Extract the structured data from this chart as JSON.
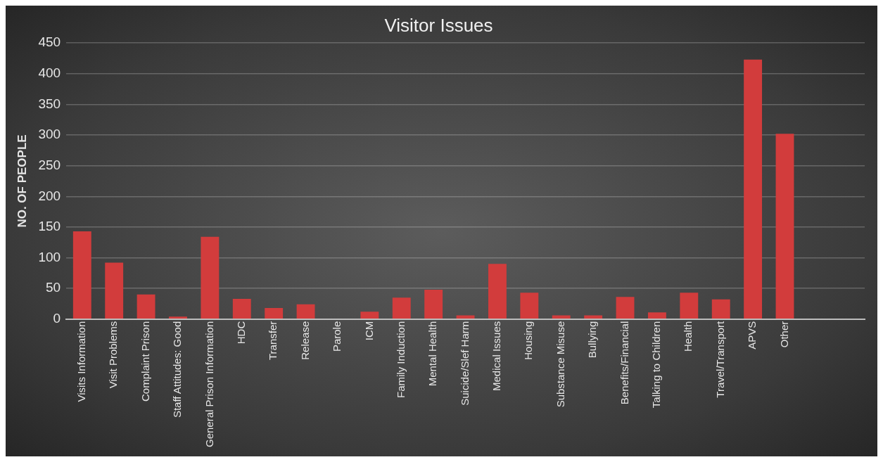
{
  "chart_data": {
    "type": "bar",
    "title": "Visitor Issues",
    "ylabel": "NO. OF PEOPLE",
    "categories": [
      "Visits Information",
      "Visit Problems",
      "Complaint Prison",
      "Staff Attitudes: Good",
      "General Prison Information",
      "HDC",
      "Transfer",
      "Release",
      "Parole",
      "ICM",
      "Family Induction",
      "Mental Health",
      "Suicide/Slef Harm",
      "Medical Issues",
      "Housing",
      "Substance Misuse",
      "Bullying",
      "Benefits/Financial",
      "Talking to Children",
      "Health",
      "Travel/Transport",
      "APVS",
      "Other",
      null,
      null
    ],
    "values": [
      143,
      92,
      40,
      4,
      134,
      33,
      18,
      24,
      1,
      12,
      35,
      48,
      6,
      90,
      43,
      6,
      6,
      36,
      11,
      43,
      32,
      423,
      302,
      null,
      null
    ],
    "color": "#d23c3c",
    "ylim": [
      0,
      450
    ],
    "yticks": [
      0,
      50,
      100,
      150,
      200,
      250,
      300,
      350,
      400,
      450
    ],
    "grid": "y"
  }
}
